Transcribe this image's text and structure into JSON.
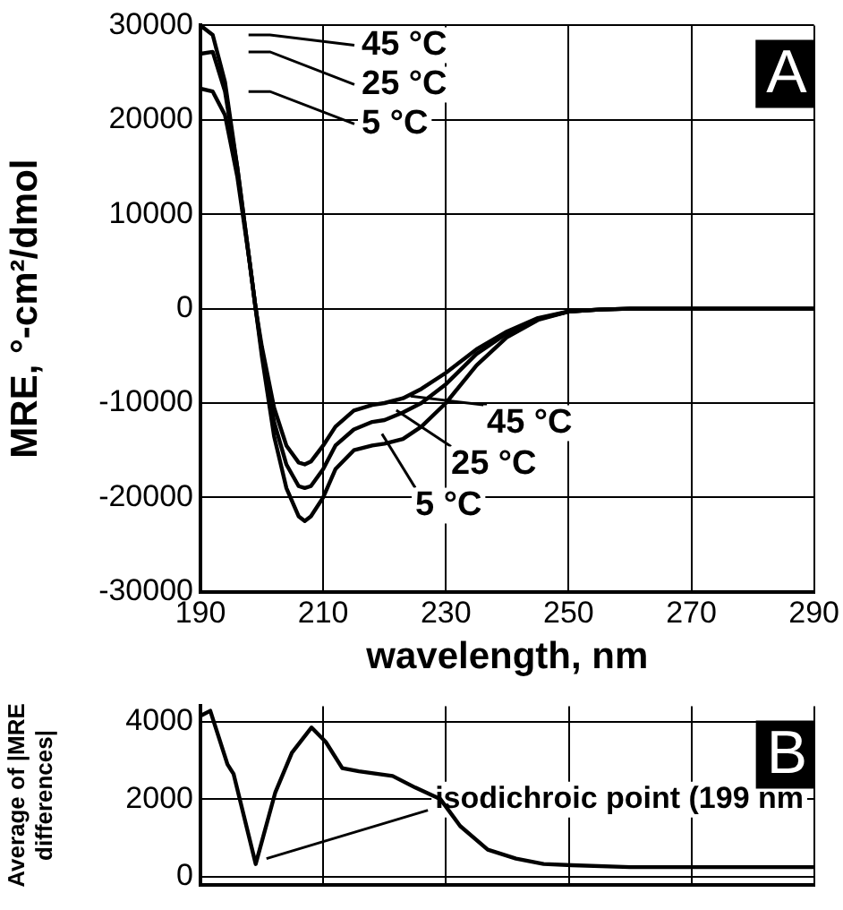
{
  "chart_data": [
    {
      "type": "line",
      "xlabel": "wavelength, nm",
      "ylabel": "MRE, °-cm²/dmol",
      "x": [
        190,
        192,
        194,
        196,
        198,
        199,
        200,
        202,
        204,
        206,
        207,
        208,
        210,
        212,
        215,
        218,
        220,
        223,
        226,
        230,
        235,
        240,
        245,
        250,
        255,
        260,
        270,
        280,
        290
      ],
      "xlim": [
        190,
        290
      ],
      "xticks": [
        190,
        210,
        230,
        250,
        270,
        290
      ],
      "ylim": [
        -30000,
        30000
      ],
      "yticks": [
        -30000,
        -20000,
        -10000,
        0,
        10000,
        20000,
        30000
      ],
      "grid": true,
      "marker": "none",
      "legend": "top left",
      "annotations": [
        "A"
      ],
      "series": [
        {
          "name": "45 °C",
          "color": "#000000",
          "values": [
            30000,
            29000,
            24000,
            15000,
            5000,
            0,
            -4000,
            -10500,
            -14500,
            -16300,
            -16500,
            -16200,
            -14500,
            -12500,
            -10800,
            -10200,
            -10000,
            -9500,
            -8500,
            -6800,
            -4300,
            -2400,
            -1000,
            -300,
            -100,
            0,
            0,
            0,
            0
          ]
        },
        {
          "name": "25 °C",
          "color": "#000000",
          "values": [
            27000,
            27200,
            23000,
            15000,
            5000,
            0,
            -4500,
            -12000,
            -16500,
            -18800,
            -19000,
            -18800,
            -17000,
            -14500,
            -12800,
            -12000,
            -11800,
            -11000,
            -10000,
            -8000,
            -4800,
            -2600,
            -1100,
            -300,
            -100,
            0,
            0,
            0,
            0
          ]
        },
        {
          "name": "5 °C",
          "color": "#000000",
          "values": [
            23300,
            23000,
            20500,
            14000,
            5000,
            0,
            -5000,
            -13500,
            -19000,
            -22000,
            -22500,
            -22000,
            -20000,
            -17000,
            -15000,
            -14500,
            -14300,
            -13800,
            -12500,
            -10000,
            -6000,
            -3000,
            -1200,
            -300,
            -100,
            0,
            0,
            0,
            0
          ]
        }
      ]
    },
    {
      "type": "line",
      "ylabel": "Average of |MRE differences|",
      "x": [
        190,
        191.6,
        194.4,
        195.4,
        199,
        202.2,
        204.9,
        208.1,
        210.4,
        213.1,
        215.8,
        221.3,
        225,
        229.1,
        232.3,
        236.8,
        241.4,
        245.9,
        250.5,
        260,
        270,
        280,
        290
      ],
      "xlim": [
        190,
        290
      ],
      "xticks": [
        190,
        210,
        230,
        250,
        270,
        290
      ],
      "ylim": [
        -200,
        4400
      ],
      "yticks": [
        0,
        2000,
        4000
      ],
      "grid": true,
      "tick_labels": "y",
      "marker": "none",
      "annotations": [
        "B",
        {
          "text": "isodichroic point (199 nm",
          "x": 199,
          "y": 330
        }
      ],
      "series": [
        {
          "color": "#000000",
          "values": [
            4150,
            4280,
            2900,
            2650,
            330,
            2180,
            3200,
            3850,
            3480,
            2800,
            2720,
            2600,
            2300,
            2000,
            1310,
            700,
            470,
            330,
            300,
            250,
            250,
            250,
            250
          ]
        }
      ]
    }
  ]
}
